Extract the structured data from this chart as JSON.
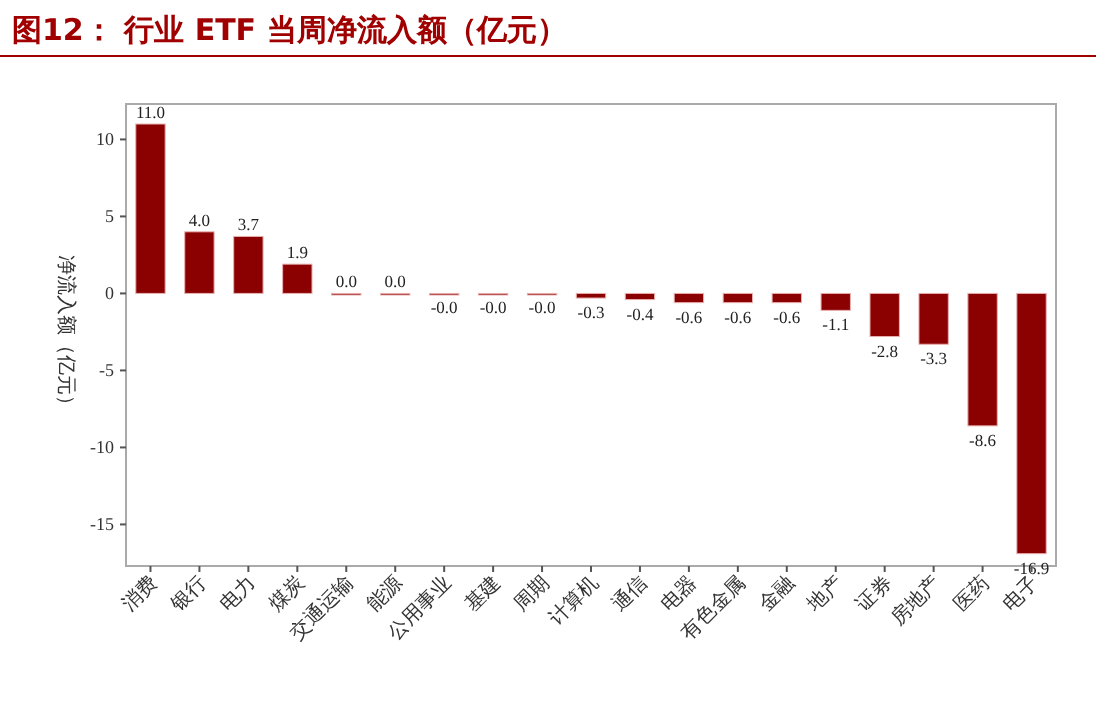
{
  "chart_data": {
    "type": "bar",
    "title": "图12： 行业 ETF 当周净流入额（亿元）",
    "ylabel": "净流入额（亿元）",
    "categories": [
      "消费",
      "银行",
      "电力",
      "煤炭",
      "交通运输",
      "能源",
      "公用事业",
      "基建",
      "周期",
      "计算机",
      "通信",
      "电器",
      "有色金属",
      "金融",
      "地产",
      "证券",
      "房地产",
      "医药",
      "电子"
    ],
    "values": [
      11.0,
      4.0,
      3.7,
      1.9,
      0.0,
      0.0,
      -0.0,
      -0.0,
      -0.0,
      -0.3,
      -0.4,
      -0.6,
      -0.6,
      -0.6,
      -1.1,
      -2.8,
      -3.3,
      -8.6,
      -16.9
    ],
    "value_labels": [
      "11.0",
      "4.0",
      "3.7",
      "1.9",
      "0.0",
      "0.0",
      "-0.0",
      "-0.0",
      "-0.0",
      "-0.3",
      "-0.4",
      "-0.6",
      "-0.6",
      "-0.6",
      "-1.1",
      "-2.8",
      "-3.3",
      "-8.6",
      "-16.9"
    ],
    "color": "#8b0000",
    "ylim": [
      -17.7,
      12.3
    ],
    "yticks": [
      -15,
      -10,
      -5,
      0,
      5,
      10
    ],
    "grid": false
  }
}
